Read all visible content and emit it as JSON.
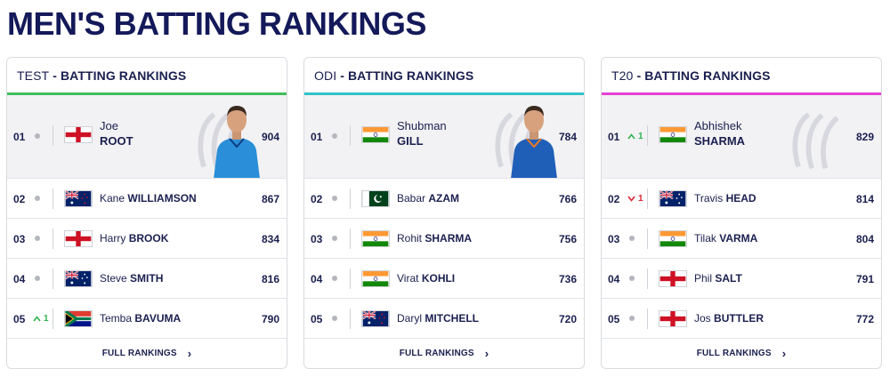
{
  "page": {
    "title": "MEN'S BATTING RANKINGS"
  },
  "colors": {
    "test_accent": "#3fbf5a",
    "odi_accent": "#2fc2c9",
    "t20_accent": "#e53fd5",
    "title": "#14195a"
  },
  "cards": [
    {
      "format": "TEST",
      "heading": "- BATTING RANKINGS",
      "leader": {
        "rank": "01",
        "movement": "none",
        "first": "Joe",
        "last": "ROOT",
        "country_flag": "england-flag",
        "points": "904"
      },
      "rows": [
        {
          "rank": "02",
          "movement": "none",
          "first": "Kane",
          "last": "WILLIAMSON",
          "country_flag": "new-zealand-flag",
          "points": "867"
        },
        {
          "rank": "03",
          "movement": "none",
          "first": "Harry",
          "last": "BROOK",
          "country_flag": "england-flag",
          "points": "834"
        },
        {
          "rank": "04",
          "movement": "none",
          "first": "Steve",
          "last": "SMITH",
          "country_flag": "australia-flag",
          "points": "816"
        },
        {
          "rank": "05",
          "movement": "up",
          "movement_value": "1",
          "first": "Temba",
          "last": "BAVUMA",
          "country_flag": "south-africa-flag",
          "points": "790"
        }
      ],
      "full_rankings": "FULL RANKINGS"
    },
    {
      "format": "ODI",
      "heading": "- BATTING RANKINGS",
      "leader": {
        "rank": "01",
        "movement": "none",
        "first": "Shubman",
        "last": "GILL",
        "country_flag": "india-flag",
        "points": "784"
      },
      "rows": [
        {
          "rank": "02",
          "movement": "none",
          "first": "Babar",
          "last": "AZAM",
          "country_flag": "pakistan-flag",
          "points": "766"
        },
        {
          "rank": "03",
          "movement": "none",
          "first": "Rohit",
          "last": "SHARMA",
          "country_flag": "india-flag",
          "points": "756"
        },
        {
          "rank": "04",
          "movement": "none",
          "first": "Virat",
          "last": "KOHLI",
          "country_flag": "india-flag",
          "points": "736"
        },
        {
          "rank": "05",
          "movement": "none",
          "first": "Daryl",
          "last": "MITCHELL",
          "country_flag": "new-zealand-flag",
          "points": "720"
        }
      ],
      "full_rankings": "FULL RANKINGS"
    },
    {
      "format": "T20",
      "heading": "- BATTING RANKINGS",
      "leader": {
        "rank": "01",
        "movement": "up",
        "movement_value": "1",
        "first": "Abhishek",
        "last": "SHARMA",
        "country_flag": "india-flag",
        "points": "829"
      },
      "rows": [
        {
          "rank": "02",
          "movement": "down",
          "movement_value": "1",
          "first": "Travis",
          "last": "HEAD",
          "country_flag": "australia-flag",
          "points": "814"
        },
        {
          "rank": "03",
          "movement": "none",
          "first": "Tilak",
          "last": "VARMA",
          "country_flag": "india-flag",
          "points": "804"
        },
        {
          "rank": "04",
          "movement": "none",
          "first": "Phil",
          "last": "SALT",
          "country_flag": "england-flag",
          "points": "791"
        },
        {
          "rank": "05",
          "movement": "none",
          "first": "Jos",
          "last": "BUTTLER",
          "country_flag": "england-flag",
          "points": "772"
        }
      ],
      "full_rankings": "FULL RANKINGS"
    }
  ]
}
